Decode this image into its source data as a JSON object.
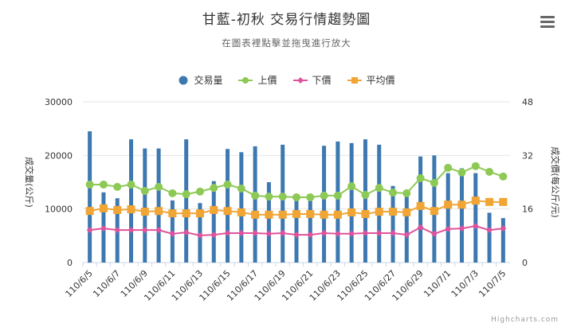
{
  "header": {
    "title": "甘藍-初秋 交易行情趨勢圖",
    "subtitle": "在圖表裡點擊並拖曳進行放大"
  },
  "menu": {
    "icon": "hamburger-menu-icon"
  },
  "legend": [
    {
      "label": "交易量",
      "color": "#3d78b0",
      "symbol": "circle"
    },
    {
      "label": "上價",
      "color": "#8dc955",
      "symbol": "line-circle"
    },
    {
      "label": "下價",
      "color": "#e0529c",
      "symbol": "line-diamond"
    },
    {
      "label": "平均價",
      "color": "#f0a535",
      "symbol": "line-square"
    }
  ],
  "credit": "Highcharts.com",
  "chart_data": {
    "type": "bar+line",
    "title": "甘藍-初秋 交易行情趨勢圖",
    "subtitle": "在圖表裡點擊並拖曳進行放大",
    "categories": [
      "110/6/5",
      "110/6/6",
      "110/6/7",
      "110/6/8",
      "110/6/9",
      "110/6/10",
      "110/6/11",
      "110/6/12",
      "110/6/13",
      "110/6/14",
      "110/6/15",
      "110/6/16",
      "110/6/17",
      "110/6/18",
      "110/6/19",
      "110/6/20",
      "110/6/21",
      "110/6/22",
      "110/6/23",
      "110/6/24",
      "110/6/25",
      "110/6/26",
      "110/6/27",
      "110/6/28",
      "110/6/29",
      "110/6/30",
      "110/7/1",
      "110/7/2",
      "110/7/3",
      "110/7/4",
      "110/7/5"
    ],
    "x_tick_labels": [
      "110/6/5",
      "110/6/7",
      "110/6/9",
      "110/6/11",
      "110/6/13",
      "110/6/15",
      "110/6/17",
      "110/6/19",
      "110/6/21",
      "110/6/23",
      "110/6/25",
      "110/6/27",
      "110/6/29",
      "110/7/1",
      "110/7/3",
      "110/7/5"
    ],
    "yaxis_left": {
      "label": "成交量(公斤)",
      "ticks": [
        0,
        10000,
        20000,
        30000
      ],
      "range": [
        0,
        30000
      ]
    },
    "yaxis_right": {
      "label": "成交價(每公斤/元)",
      "ticks": [
        0,
        16,
        32,
        48
      ],
      "range": [
        0,
        48
      ]
    },
    "series": [
      {
        "name": "交易量",
        "type": "column",
        "axis": "left",
        "color": "#3d78b0",
        "values": [
          24500,
          13100,
          12000,
          23000,
          21300,
          21300,
          11600,
          23000,
          11100,
          15200,
          21200,
          20600,
          21700,
          15000,
          22000,
          12600,
          12600,
          21800,
          22600,
          22300,
          23000,
          22000,
          14300,
          12500,
          19800,
          20000,
          16700,
          17600,
          16700,
          9300,
          8300
        ]
      },
      {
        "name": "上價",
        "type": "line",
        "axis": "right",
        "color": "#8dc955",
        "values": [
          23.3,
          23.3,
          22.6,
          23.3,
          21.4,
          22.6,
          20.7,
          20.4,
          21.2,
          22.3,
          23.3,
          22.1,
          20.0,
          19.7,
          19.7,
          19.5,
          19.5,
          20.0,
          20.0,
          22.8,
          20.2,
          22.3,
          20.9,
          20.7,
          25.2,
          23.8,
          28.3,
          26.9,
          28.8,
          27.1,
          25.7
        ]
      },
      {
        "name": "下價",
        "type": "line",
        "axis": "right",
        "color": "#e0529c",
        "values": [
          9.7,
          10.2,
          9.7,
          9.7,
          9.7,
          9.7,
          8.6,
          9.0,
          8.1,
          8.3,
          8.8,
          8.8,
          8.8,
          8.6,
          8.8,
          8.3,
          8.3,
          8.8,
          8.6,
          8.6,
          8.8,
          8.8,
          8.8,
          8.3,
          10.5,
          8.6,
          10.0,
          10.2,
          10.9,
          9.7,
          10.2
        ]
      },
      {
        "name": "平均價",
        "type": "line",
        "axis": "right",
        "color": "#f0a535",
        "values": [
          15.4,
          16.2,
          15.7,
          15.9,
          15.2,
          15.4,
          14.7,
          14.7,
          14.7,
          15.7,
          15.4,
          15.0,
          14.3,
          14.3,
          14.3,
          14.5,
          14.5,
          14.3,
          14.3,
          15.0,
          14.5,
          15.2,
          15.2,
          15.0,
          16.9,
          15.4,
          17.3,
          17.3,
          18.5,
          18.1,
          18.1
        ]
      }
    ],
    "grid": true,
    "legend_position": "top"
  }
}
